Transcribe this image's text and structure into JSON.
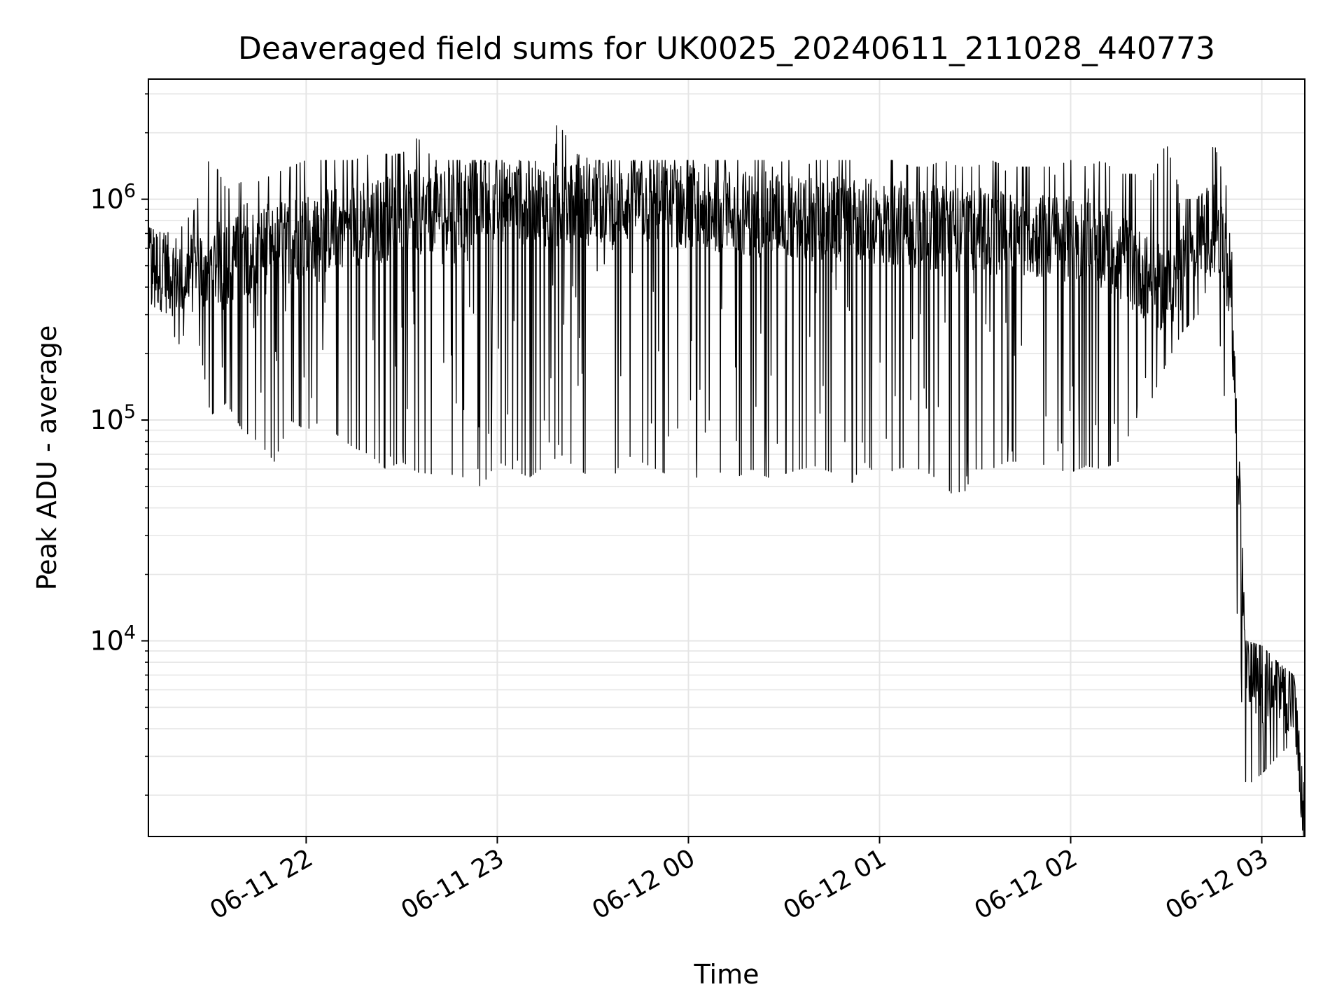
{
  "chart_data": {
    "type": "line",
    "title": "Deaveraged field sums for UK0025_20240611_211028_440773",
    "xlabel": "Time",
    "ylabel": "Peak ADU - average",
    "yscale": "log",
    "ylim": [
      1300,
      3500000
    ],
    "xlim": [
      "2024-06-11 21:10:28",
      "2024-06-12 03:13:30"
    ],
    "grid": true,
    "line_color": "#000000",
    "grid_color": "#e5e5e5",
    "x_ticks": [
      {
        "t": "2024-06-11 22:00",
        "label": "06-11 22"
      },
      {
        "t": "2024-06-11 23:00",
        "label": "06-11 23"
      },
      {
        "t": "2024-06-12 00:00",
        "label": "06-12 00"
      },
      {
        "t": "2024-06-12 01:00",
        "label": "06-12 01"
      },
      {
        "t": "2024-06-12 02:00",
        "label": "06-12 02"
      },
      {
        "t": "2024-06-12 03:00",
        "label": "06-12 03"
      }
    ],
    "y_ticks": [
      {
        "value": 10000,
        "base": "10",
        "exp": "4"
      },
      {
        "value": 100000,
        "base": "10",
        "exp": "5"
      },
      {
        "value": 1000000,
        "base": "10",
        "exp": "6"
      }
    ],
    "series": [
      {
        "x": [
          "2024-06-11 21:10",
          "2024-06-11 21:15",
          "2024-06-11 21:20",
          "2024-06-11 21:25",
          "2024-06-11 21:30",
          "2024-06-11 21:35",
          "2024-06-11 21:40",
          "2024-06-11 21:45",
          "2024-06-11 21:50",
          "2024-06-11 21:55",
          "2024-06-11 22:00",
          "2024-06-11 22:05",
          "2024-06-11 22:10",
          "2024-06-11 22:15",
          "2024-06-11 22:20",
          "2024-06-11 22:25",
          "2024-06-11 22:30",
          "2024-06-11 22:35",
          "2024-06-11 22:40",
          "2024-06-11 22:45",
          "2024-06-11 22:50",
          "2024-06-11 22:55",
          "2024-06-11 23:00",
          "2024-06-11 23:05",
          "2024-06-11 23:10",
          "2024-06-11 23:15",
          "2024-06-11 23:20",
          "2024-06-11 23:25",
          "2024-06-11 23:30",
          "2024-06-11 23:35",
          "2024-06-11 23:40",
          "2024-06-11 23:45",
          "2024-06-11 23:50",
          "2024-06-11 23:55",
          "2024-06-12 00:00",
          "2024-06-12 00:05",
          "2024-06-12 00:10",
          "2024-06-12 00:15",
          "2024-06-12 00:20",
          "2024-06-12 00:25",
          "2024-06-12 00:30",
          "2024-06-12 00:35",
          "2024-06-12 00:40",
          "2024-06-12 00:45",
          "2024-06-12 00:50",
          "2024-06-12 00:55",
          "2024-06-12 01:00",
          "2024-06-12 01:05",
          "2024-06-12 01:10",
          "2024-06-12 01:15",
          "2024-06-12 01:20",
          "2024-06-12 01:25",
          "2024-06-12 01:30",
          "2024-06-12 01:35",
          "2024-06-12 01:40",
          "2024-06-12 01:45",
          "2024-06-12 01:50",
          "2024-06-12 01:55",
          "2024-06-12 02:00",
          "2024-06-12 02:05",
          "2024-06-12 02:10",
          "2024-06-12 02:15",
          "2024-06-12 02:20",
          "2024-06-12 02:25",
          "2024-06-12 02:30",
          "2024-06-12 02:35",
          "2024-06-12 02:40",
          "2024-06-12 02:45",
          "2024-06-12 02:50",
          "2024-06-12 02:55",
          "2024-06-12 03:00",
          "2024-06-12 03:05",
          "2024-06-12 03:10",
          "2024-06-12 03:13"
        ],
        "y_typical": [
          520000,
          480000,
          450000,
          470000,
          500000,
          520000,
          560000,
          600000,
          620000,
          650000,
          700000,
          720000,
          750000,
          780000,
          800000,
          820000,
          850000,
          880000,
          900000,
          920000,
          950000,
          970000,
          1000000,
          980000,
          960000,
          950000,
          940000,
          950000,
          960000,
          970000,
          980000,
          970000,
          950000,
          940000,
          930000,
          920000,
          900000,
          880000,
          860000,
          850000,
          840000,
          830000,
          820000,
          810000,
          800000,
          790000,
          780000,
          770000,
          760000,
          750000,
          740000,
          730000,
          720000,
          710000,
          700000,
          690000,
          680000,
          670000,
          660000,
          650000,
          620000,
          560000,
          500000,
          420000,
          380000,
          500000,
          700000,
          750000,
          450000,
          9000,
          6000,
          6500,
          5500,
          1500
        ],
        "y_max": [
          750000,
          700000,
          720000,
          900000,
          1600000,
          1100000,
          1200000,
          1200000,
          1300000,
          1400000,
          1500000,
          1500000,
          1500000,
          1500000,
          1600000,
          1600000,
          1600000,
          1900000,
          1500000,
          1500000,
          1500000,
          1500000,
          1500000,
          1500000,
          1500000,
          2300000,
          2100000,
          1600000,
          1500000,
          1500000,
          1500000,
          1500000,
          1500000,
          1500000,
          1500000,
          1500000,
          1500000,
          1500000,
          1500000,
          1500000,
          1500000,
          1500000,
          1500000,
          1500000,
          1500000,
          1500000,
          1500000,
          1500000,
          1400000,
          1400000,
          1500000,
          1400000,
          1400000,
          1500000,
          1400000,
          1400000,
          1400000,
          1400000,
          1500000,
          1400000,
          1500000,
          1300000,
          1300000,
          1200000,
          1800000,
          1000000,
          1000000,
          1800000,
          1000000,
          10000,
          9500,
          8000,
          7000,
          3000
        ],
        "y_min": [
          350000,
          300000,
          220000,
          300000,
          105000,
          120000,
          90000,
          80000,
          65000,
          100000,
          90000,
          100000,
          85000,
          75000,
          70000,
          60000,
          65000,
          58000,
          57000,
          57000,
          55000,
          50000,
          65000,
          60000,
          55000,
          62000,
          70000,
          60000,
          55000,
          50000,
          70000,
          65000,
          60000,
          55000,
          50000,
          60000,
          58000,
          55000,
          60000,
          55000,
          57000,
          60000,
          62000,
          58000,
          48000,
          65000,
          55000,
          60000,
          62000,
          58000,
          52000,
          42000,
          60000,
          60000,
          65000,
          65000,
          63000,
          60000,
          58000,
          62000,
          60000,
          65000,
          100000,
          120000,
          180000,
          250000,
          300000,
          500000,
          60000,
          2200,
          2500,
          3000,
          3500,
          1300
        ]
      }
    ]
  }
}
